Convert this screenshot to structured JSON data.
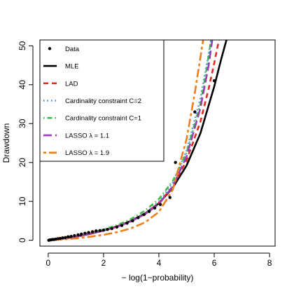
{
  "chart_data": {
    "type": "line",
    "title": "",
    "xlabel": "− log(1−probability)",
    "ylabel": "Drawdown",
    "xlim": [
      -0.3,
      8.2
    ],
    "ylim": [
      -1.5,
      51.5
    ],
    "x_ticks": [
      0,
      2,
      4,
      6,
      8
    ],
    "y_ticks": [
      0,
      10,
      20,
      30,
      40,
      50
    ],
    "grid": false,
    "legend_position": "top-left",
    "points": {
      "name": "Data",
      "color": "#000000",
      "x": [
        0.02,
        0.06,
        0.1,
        0.15,
        0.2,
        0.27,
        0.35,
        0.43,
        0.52,
        0.62,
        0.72,
        0.83,
        0.95,
        1.08,
        1.2,
        1.33,
        1.46,
        1.6,
        1.73,
        1.87,
        2.0,
        2.14,
        2.3,
        2.48,
        2.66,
        2.85,
        3.05,
        3.25,
        3.46,
        3.65,
        3.85,
        4.05,
        4.4,
        4.6,
        5.3,
        6.0
      ],
      "y": [
        0.0,
        0.1,
        0.1,
        0.2,
        0.2,
        0.3,
        0.4,
        0.5,
        0.6,
        0.7,
        0.9,
        1.0,
        1.2,
        1.4,
        1.6,
        1.8,
        2.0,
        2.2,
        2.4,
        2.5,
        2.6,
        2.8,
        3.0,
        3.4,
        3.8,
        4.4,
        5.0,
        5.8,
        6.6,
        7.4,
        8.3,
        9.2,
        11.0,
        20.0,
        33.0,
        41.0
      ]
    },
    "series": [
      {
        "name": "MLE",
        "color": "#000000",
        "style": "solid",
        "x": [
          0,
          0.5,
          1,
          1.5,
          2,
          2.5,
          3,
          3.5,
          4,
          4.5,
          5,
          5.5,
          6,
          6.25,
          6.5,
          6.6
        ],
        "y": [
          0.0,
          0.4,
          0.9,
          1.7,
          2.5,
          3.6,
          5.0,
          6.9,
          9.5,
          13.5,
          19.2,
          27.5,
          39.5,
          46.5,
          53.0,
          56.0
        ]
      },
      {
        "name": "LAD",
        "color": "#e8271f",
        "style": "dashed",
        "x": [
          0,
          0.5,
          1,
          1.5,
          2,
          2.5,
          3,
          3.5,
          4,
          4.5,
          5,
          5.5,
          5.8,
          6.0,
          6.2,
          6.35
        ],
        "y": [
          0.0,
          0.4,
          0.9,
          1.6,
          2.5,
          3.5,
          4.9,
          6.8,
          9.6,
          13.8,
          20.5,
          30.5,
          39.0,
          45.5,
          52.5,
          58.0
        ]
      },
      {
        "name": "Cardinality constraint C=2",
        "color": "#2b8fd8",
        "style": "dotted",
        "x": [
          0,
          0.5,
          1,
          1.5,
          2,
          2.5,
          3,
          3.5,
          4,
          4.5,
          5,
          5.5,
          5.7,
          5.9,
          6.1
        ],
        "y": [
          0.0,
          0.4,
          0.9,
          1.6,
          2.5,
          3.5,
          5.0,
          6.9,
          9.9,
          14.8,
          23.0,
          36.5,
          44.0,
          52.0,
          60.0
        ]
      },
      {
        "name": "Cardinality constraint C=1",
        "color": "#3fb94a",
        "style": "dotdash",
        "x": [
          0,
          0.5,
          1,
          1.5,
          2,
          2.5,
          3,
          3.5,
          4,
          4.5,
          5,
          5.5,
          5.7,
          5.9,
          6.05
        ],
        "y": [
          0.0,
          0.4,
          1.0,
          1.8,
          2.8,
          3.9,
          5.5,
          7.6,
          10.6,
          15.2,
          22.5,
          35.0,
          43.0,
          52.0,
          59.0
        ]
      },
      {
        "name": "LASSO λ = 1.1",
        "color": "#9b3fb0",
        "style": "longdash",
        "x": [
          0,
          0.5,
          1,
          1.5,
          2,
          2.5,
          3,
          3.5,
          4,
          4.5,
          5,
          5.5,
          5.8,
          6.0,
          6.1
        ],
        "y": [
          0.0,
          0.4,
          0.9,
          1.6,
          2.5,
          3.5,
          4.9,
          6.7,
          9.3,
          13.8,
          21.5,
          34.0,
          45.0,
          55.0,
          60.0
        ]
      },
      {
        "name": "LASSO λ = 1.9",
        "color": "#f07d18",
        "style": "twodash",
        "x": [
          0,
          0.5,
          1,
          1.5,
          2,
          2.5,
          3,
          3.5,
          4,
          4.5,
          5,
          5.3,
          5.5,
          5.7,
          5.85
        ],
        "y": [
          0.0,
          0.2,
          0.5,
          0.9,
          1.4,
          2.1,
          3.1,
          4.6,
          7.3,
          13.0,
          26.0,
          38.0,
          47.0,
          56.0,
          62.0
        ]
      }
    ]
  }
}
